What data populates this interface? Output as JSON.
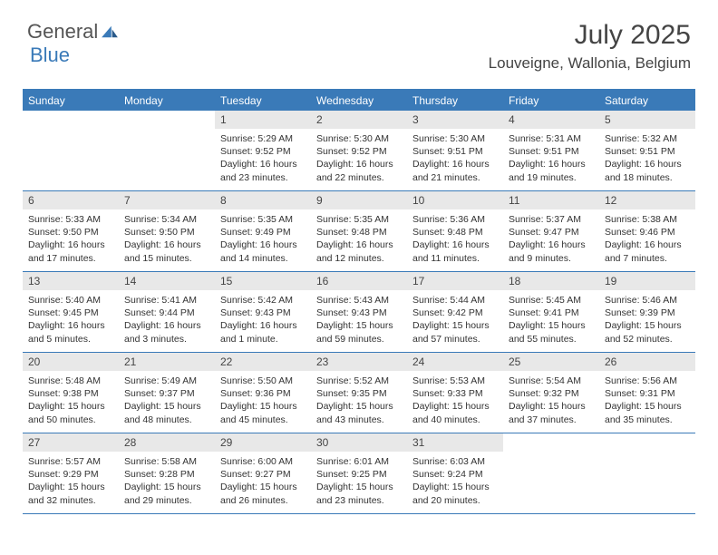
{
  "brand": {
    "word1": "General",
    "word2": "Blue"
  },
  "title": "July 2025",
  "location": "Louveigne, Wallonia, Belgium",
  "colors": {
    "accent": "#3a7ab8",
    "header_text": "#444444",
    "daynum_bg": "#e8e8e8",
    "body_bg": "#ffffff",
    "text": "#333333"
  },
  "typography": {
    "title_fontsize": 30,
    "location_fontsize": 17,
    "dow_fontsize": 12,
    "cell_fontsize": 10.5
  },
  "days_of_week": [
    "Sunday",
    "Monday",
    "Tuesday",
    "Wednesday",
    "Thursday",
    "Friday",
    "Saturday"
  ],
  "weeks": [
    [
      null,
      null,
      {
        "n": "1",
        "sunrise": "Sunrise: 5:29 AM",
        "sunset": "Sunset: 9:52 PM",
        "daylight": "Daylight: 16 hours and 23 minutes."
      },
      {
        "n": "2",
        "sunrise": "Sunrise: 5:30 AM",
        "sunset": "Sunset: 9:52 PM",
        "daylight": "Daylight: 16 hours and 22 minutes."
      },
      {
        "n": "3",
        "sunrise": "Sunrise: 5:30 AM",
        "sunset": "Sunset: 9:51 PM",
        "daylight": "Daylight: 16 hours and 21 minutes."
      },
      {
        "n": "4",
        "sunrise": "Sunrise: 5:31 AM",
        "sunset": "Sunset: 9:51 PM",
        "daylight": "Daylight: 16 hours and 19 minutes."
      },
      {
        "n": "5",
        "sunrise": "Sunrise: 5:32 AM",
        "sunset": "Sunset: 9:51 PM",
        "daylight": "Daylight: 16 hours and 18 minutes."
      }
    ],
    [
      {
        "n": "6",
        "sunrise": "Sunrise: 5:33 AM",
        "sunset": "Sunset: 9:50 PM",
        "daylight": "Daylight: 16 hours and 17 minutes."
      },
      {
        "n": "7",
        "sunrise": "Sunrise: 5:34 AM",
        "sunset": "Sunset: 9:50 PM",
        "daylight": "Daylight: 16 hours and 15 minutes."
      },
      {
        "n": "8",
        "sunrise": "Sunrise: 5:35 AM",
        "sunset": "Sunset: 9:49 PM",
        "daylight": "Daylight: 16 hours and 14 minutes."
      },
      {
        "n": "9",
        "sunrise": "Sunrise: 5:35 AM",
        "sunset": "Sunset: 9:48 PM",
        "daylight": "Daylight: 16 hours and 12 minutes."
      },
      {
        "n": "10",
        "sunrise": "Sunrise: 5:36 AM",
        "sunset": "Sunset: 9:48 PM",
        "daylight": "Daylight: 16 hours and 11 minutes."
      },
      {
        "n": "11",
        "sunrise": "Sunrise: 5:37 AM",
        "sunset": "Sunset: 9:47 PM",
        "daylight": "Daylight: 16 hours and 9 minutes."
      },
      {
        "n": "12",
        "sunrise": "Sunrise: 5:38 AM",
        "sunset": "Sunset: 9:46 PM",
        "daylight": "Daylight: 16 hours and 7 minutes."
      }
    ],
    [
      {
        "n": "13",
        "sunrise": "Sunrise: 5:40 AM",
        "sunset": "Sunset: 9:45 PM",
        "daylight": "Daylight: 16 hours and 5 minutes."
      },
      {
        "n": "14",
        "sunrise": "Sunrise: 5:41 AM",
        "sunset": "Sunset: 9:44 PM",
        "daylight": "Daylight: 16 hours and 3 minutes."
      },
      {
        "n": "15",
        "sunrise": "Sunrise: 5:42 AM",
        "sunset": "Sunset: 9:43 PM",
        "daylight": "Daylight: 16 hours and 1 minute."
      },
      {
        "n": "16",
        "sunrise": "Sunrise: 5:43 AM",
        "sunset": "Sunset: 9:43 PM",
        "daylight": "Daylight: 15 hours and 59 minutes."
      },
      {
        "n": "17",
        "sunrise": "Sunrise: 5:44 AM",
        "sunset": "Sunset: 9:42 PM",
        "daylight": "Daylight: 15 hours and 57 minutes."
      },
      {
        "n": "18",
        "sunrise": "Sunrise: 5:45 AM",
        "sunset": "Sunset: 9:41 PM",
        "daylight": "Daylight: 15 hours and 55 minutes."
      },
      {
        "n": "19",
        "sunrise": "Sunrise: 5:46 AM",
        "sunset": "Sunset: 9:39 PM",
        "daylight": "Daylight: 15 hours and 52 minutes."
      }
    ],
    [
      {
        "n": "20",
        "sunrise": "Sunrise: 5:48 AM",
        "sunset": "Sunset: 9:38 PM",
        "daylight": "Daylight: 15 hours and 50 minutes."
      },
      {
        "n": "21",
        "sunrise": "Sunrise: 5:49 AM",
        "sunset": "Sunset: 9:37 PM",
        "daylight": "Daylight: 15 hours and 48 minutes."
      },
      {
        "n": "22",
        "sunrise": "Sunrise: 5:50 AM",
        "sunset": "Sunset: 9:36 PM",
        "daylight": "Daylight: 15 hours and 45 minutes."
      },
      {
        "n": "23",
        "sunrise": "Sunrise: 5:52 AM",
        "sunset": "Sunset: 9:35 PM",
        "daylight": "Daylight: 15 hours and 43 minutes."
      },
      {
        "n": "24",
        "sunrise": "Sunrise: 5:53 AM",
        "sunset": "Sunset: 9:33 PM",
        "daylight": "Daylight: 15 hours and 40 minutes."
      },
      {
        "n": "25",
        "sunrise": "Sunrise: 5:54 AM",
        "sunset": "Sunset: 9:32 PM",
        "daylight": "Daylight: 15 hours and 37 minutes."
      },
      {
        "n": "26",
        "sunrise": "Sunrise: 5:56 AM",
        "sunset": "Sunset: 9:31 PM",
        "daylight": "Daylight: 15 hours and 35 minutes."
      }
    ],
    [
      {
        "n": "27",
        "sunrise": "Sunrise: 5:57 AM",
        "sunset": "Sunset: 9:29 PM",
        "daylight": "Daylight: 15 hours and 32 minutes."
      },
      {
        "n": "28",
        "sunrise": "Sunrise: 5:58 AM",
        "sunset": "Sunset: 9:28 PM",
        "daylight": "Daylight: 15 hours and 29 minutes."
      },
      {
        "n": "29",
        "sunrise": "Sunrise: 6:00 AM",
        "sunset": "Sunset: 9:27 PM",
        "daylight": "Daylight: 15 hours and 26 minutes."
      },
      {
        "n": "30",
        "sunrise": "Sunrise: 6:01 AM",
        "sunset": "Sunset: 9:25 PM",
        "daylight": "Daylight: 15 hours and 23 minutes."
      },
      {
        "n": "31",
        "sunrise": "Sunrise: 6:03 AM",
        "sunset": "Sunset: 9:24 PM",
        "daylight": "Daylight: 15 hours and 20 minutes."
      },
      null,
      null
    ]
  ]
}
